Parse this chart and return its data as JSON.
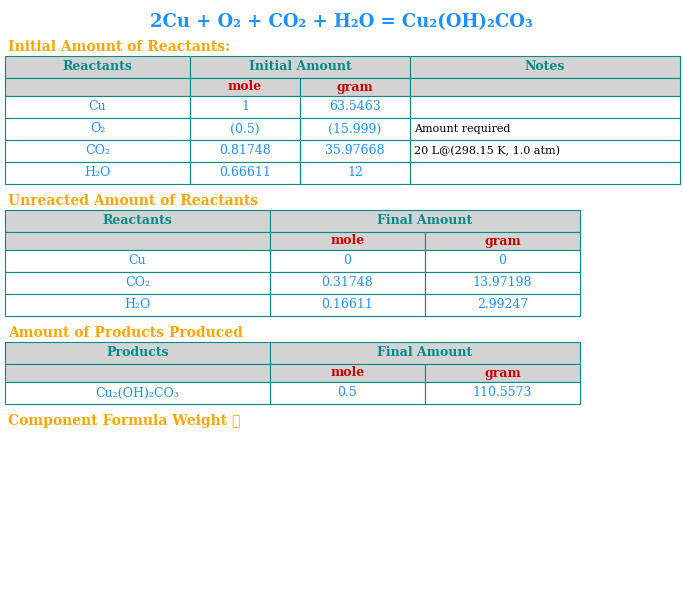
{
  "title": "2Cu + O₂ + CO₂ + H₂O = Cu₂(OH)₂CO₃",
  "title_color": "#1e90ff",
  "section1_title": "Initial Amount of Reactants:",
  "section2_title": "Unreacted Amount of Reactants",
  "section3_title": "Amount of Products Produced",
  "section4_title": "Component Formula Weight ➕",
  "section_title_color": "#FFA500",
  "header_text_color": "#008B8B",
  "subheader_text_color": "#cc0000",
  "data_text_color": "#1e90ff",
  "header_bg": "#d3d3d3",
  "row_bg_white": "#ffffff",
  "border_color": "#008B8B",
  "table1": {
    "rows": [
      [
        "Cu",
        "1",
        "63.5463",
        ""
      ],
      [
        "O₂",
        "(0.5)",
        "(15.999)",
        "Amount required"
      ],
      [
        "CO₂",
        "0.81748",
        "35.97668",
        "20 L@(298.15 K, 1.0 atm)"
      ],
      [
        "H₂O",
        "0.66611",
        "12",
        ""
      ]
    ]
  },
  "table2": {
    "rows": [
      [
        "Cu",
        "0",
        "0"
      ],
      [
        "CO₂",
        "0.31748",
        "13.97198"
      ],
      [
        "H₂O",
        "0.16611",
        "2.99247"
      ]
    ]
  },
  "table3": {
    "rows": [
      [
        "Cu₂(OH)₂CO₃",
        "0.5",
        "110.5573"
      ]
    ]
  }
}
